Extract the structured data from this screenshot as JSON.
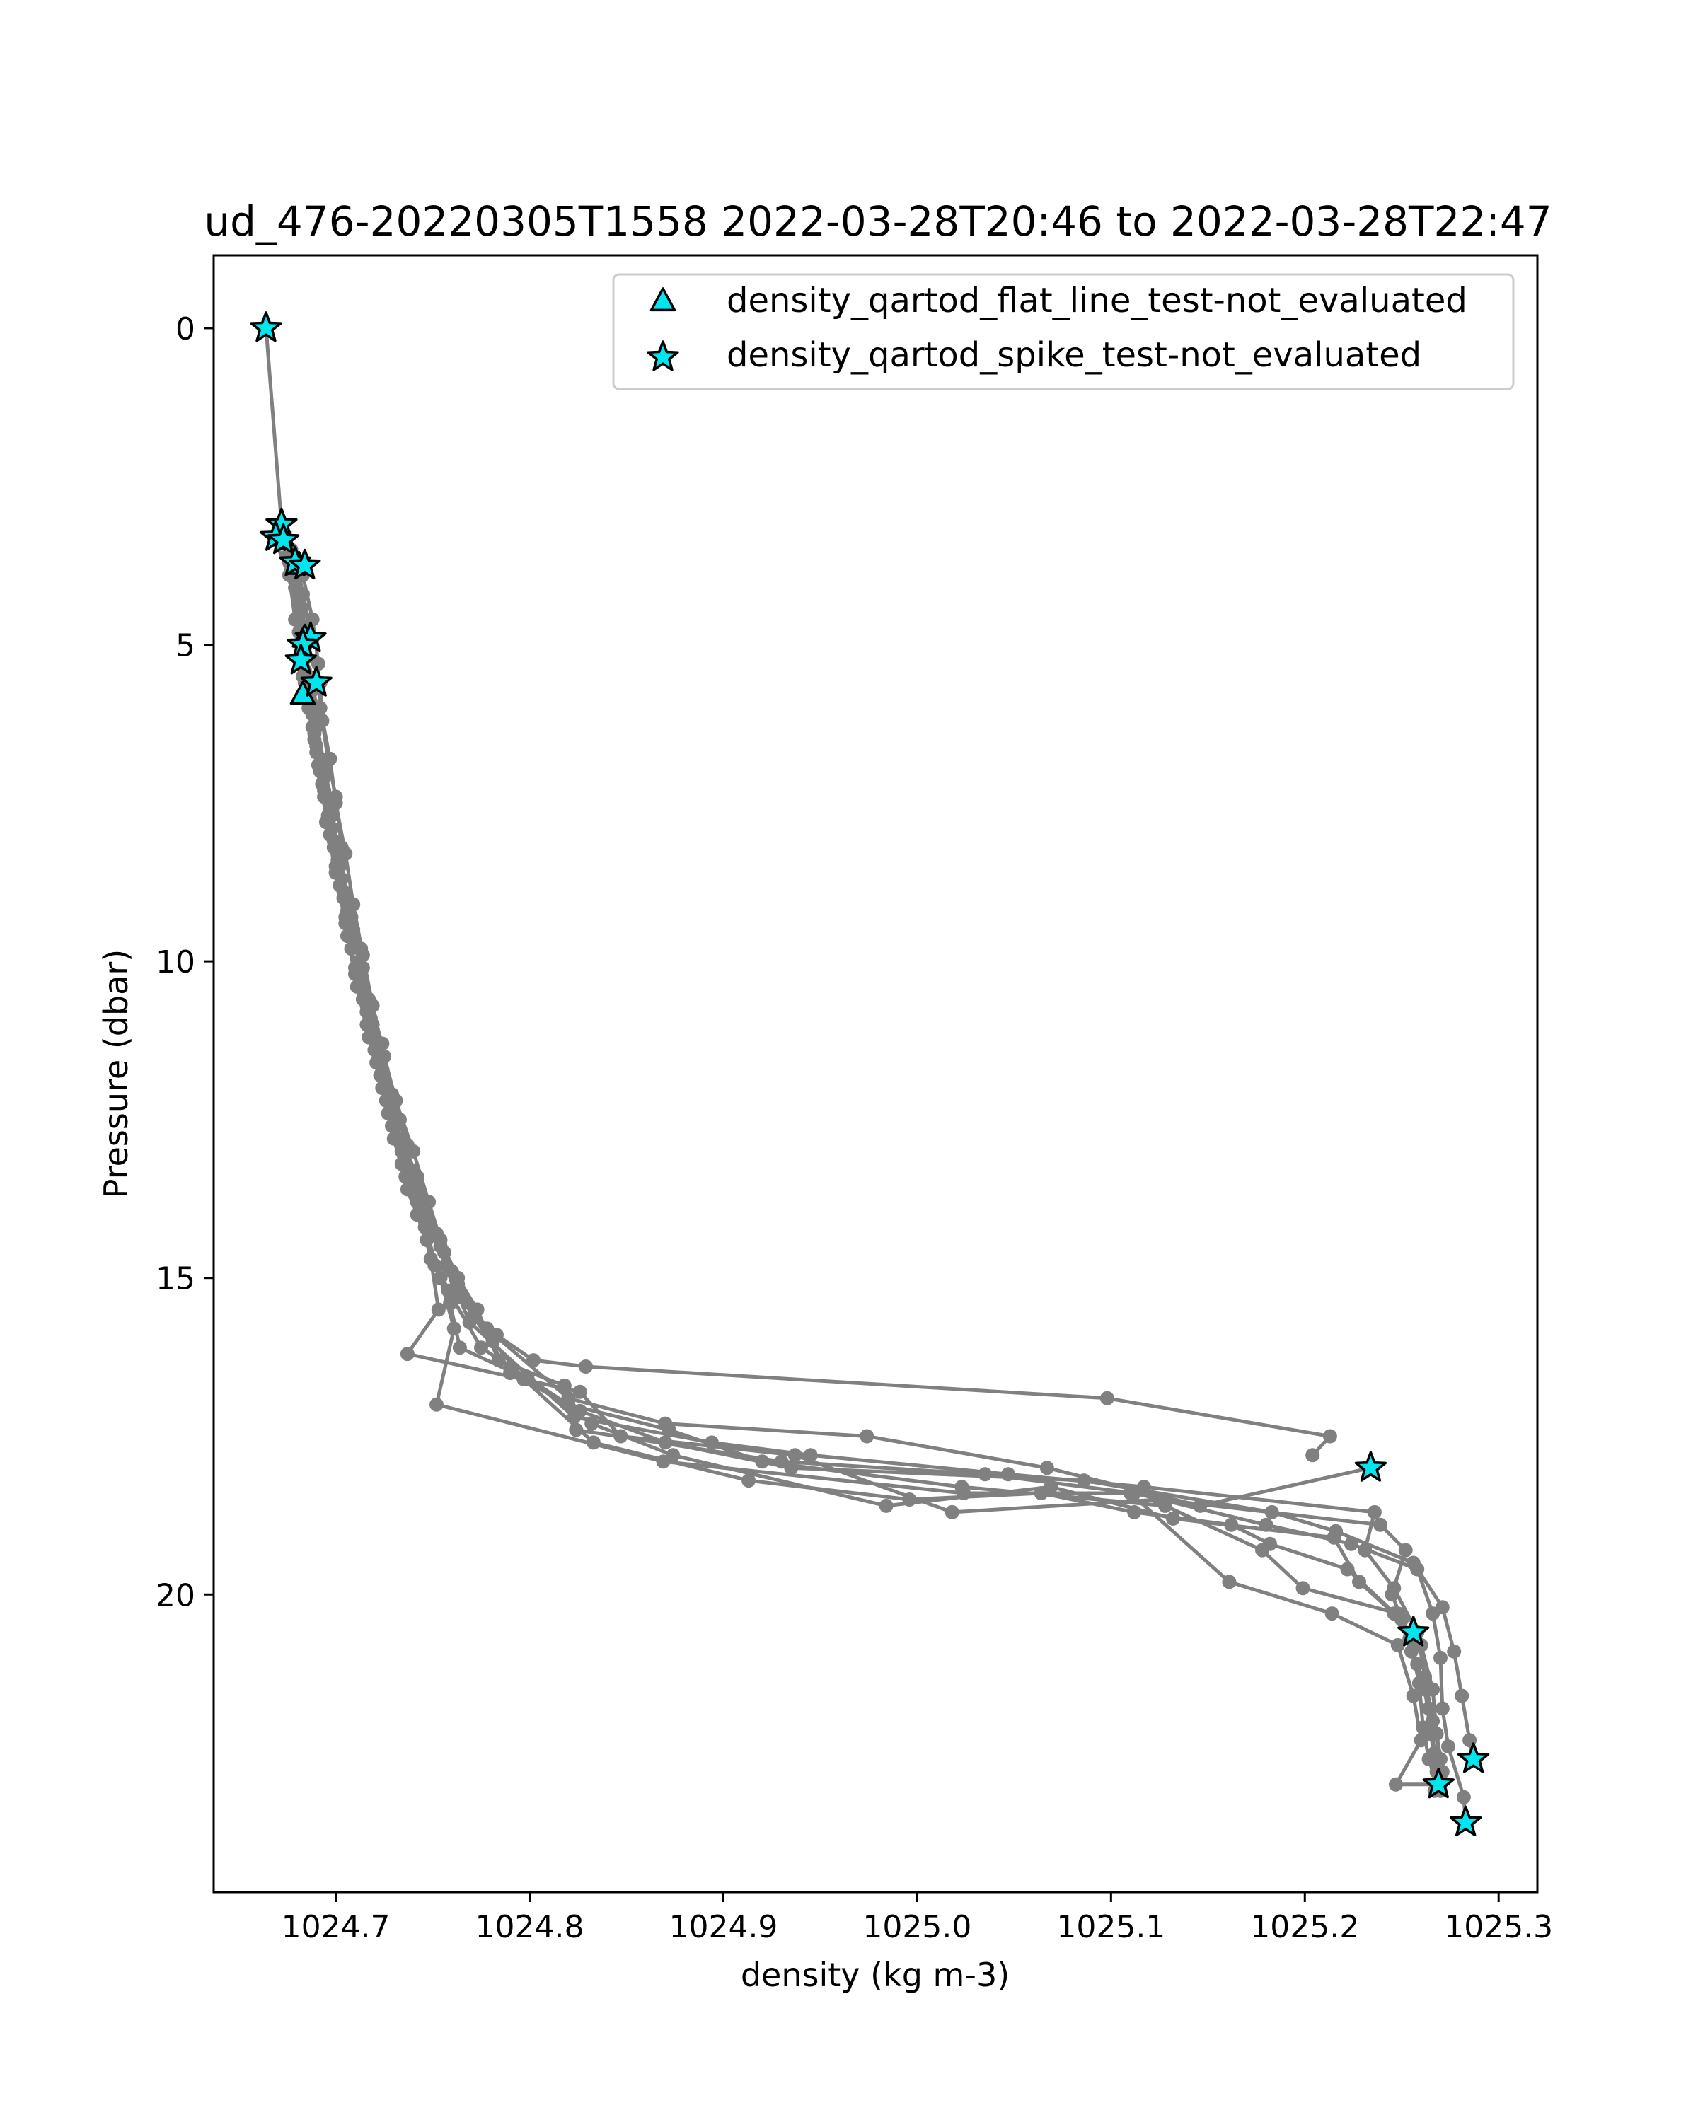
{
  "chart_data": {
    "type": "scatter",
    "title": "ud_476-20220305T1558 2022-03-28T20:46 to 2022-03-28T22:47",
    "xlabel": "density (kg m-3)",
    "ylabel": "Pressure (dbar)",
    "xlim": [
      1024.637,
      1025.32
    ],
    "ylim": [
      24.7,
      -1.15
    ],
    "y_inverted": true,
    "x_ticks": [
      "1024.7",
      "1024.8",
      "1024.9",
      "1025.0",
      "1025.1",
      "1025.2",
      "1025.3"
    ],
    "x_tick_values": [
      1024.7,
      1024.8,
      1024.9,
      1025.0,
      1025.1,
      1025.2,
      1025.3
    ],
    "y_ticks": [
      "0",
      "5",
      "10",
      "15",
      "20"
    ],
    "y_tick_values": [
      0,
      5,
      10,
      15,
      20
    ],
    "grid": false,
    "legend_position": "top-right",
    "colors": {
      "profile_line": "#808080",
      "marker_fill": "#00e5ee",
      "marker_edge": "#000000"
    },
    "profiles": [
      [
        [
          1024.664,
          0.0
        ],
        [
          1024.672,
          3.1
        ],
        [
          1024.68,
          3.7
        ],
        [
          1024.683,
          4.2
        ],
        [
          1024.688,
          4.9
        ],
        [
          1024.684,
          5.4
        ],
        [
          1024.692,
          5.6
        ],
        [
          1024.693,
          6.2
        ],
        [
          1024.696,
          6.8
        ],
        [
          1024.7,
          7.4
        ],
        [
          1024.703,
          8.2
        ],
        [
          1024.705,
          9.0
        ],
        [
          1024.713,
          9.8
        ],
        [
          1024.717,
          10.6
        ],
        [
          1024.724,
          11.3
        ],
        [
          1024.729,
          12.1
        ],
        [
          1024.737,
          12.9
        ],
        [
          1024.741,
          13.7
        ],
        [
          1024.754,
          14.5
        ],
        [
          1024.762,
          15.3
        ],
        [
          1024.783,
          15.9
        ],
        [
          1024.802,
          16.3
        ],
        [
          1024.829,
          16.4
        ],
        [
          1025.098,
          16.9
        ],
        [
          1025.213,
          17.5
        ],
        [
          1025.204,
          17.8
        ]
      ],
      [
        [
          1024.668,
          3.3
        ],
        [
          1024.676,
          3.9
        ],
        [
          1024.679,
          4.6
        ],
        [
          1024.683,
          5.2
        ],
        [
          1024.686,
          5.8
        ],
        [
          1024.689,
          6.5
        ],
        [
          1024.694,
          7.1
        ],
        [
          1024.698,
          7.9
        ],
        [
          1024.703,
          8.7
        ],
        [
          1024.709,
          9.5
        ],
        [
          1024.713,
          10.2
        ],
        [
          1024.719,
          11.0
        ],
        [
          1024.723,
          11.8
        ],
        [
          1024.731,
          12.6
        ],
        [
          1024.742,
          13.4
        ],
        [
          1024.752,
          14.3
        ],
        [
          1024.763,
          15.1
        ],
        [
          1024.778,
          15.8
        ],
        [
          1024.82,
          16.9
        ],
        [
          1024.87,
          17.3
        ],
        [
          1024.974,
          17.5
        ],
        [
          1025.067,
          18.0
        ],
        [
          1025.146,
          18.6
        ],
        [
          1025.234,
          18.0
        ]
      ],
      [
        [
          1024.673,
          3.4
        ],
        [
          1024.679,
          4.1
        ],
        [
          1024.681,
          4.8
        ],
        [
          1024.683,
          5.5
        ],
        [
          1024.688,
          6.1
        ],
        [
          1024.691,
          6.9
        ],
        [
          1024.697,
          7.6
        ],
        [
          1024.701,
          8.4
        ],
        [
          1024.706,
          9.2
        ],
        [
          1024.712,
          10.0
        ],
        [
          1024.716,
          10.8
        ],
        [
          1024.722,
          11.6
        ],
        [
          1024.728,
          12.4
        ],
        [
          1024.735,
          13.2
        ],
        [
          1024.745,
          14.0
        ],
        [
          1024.757,
          14.8
        ],
        [
          1024.769,
          15.7
        ],
        [
          1024.823,
          17.2
        ],
        [
          1024.894,
          17.6
        ],
        [
          1024.945,
          17.8
        ],
        [
          1025.047,
          18.1
        ],
        [
          1025.117,
          18.3
        ],
        [
          1025.236,
          18.7
        ],
        [
          1025.231,
          19.3
        ],
        [
          1025.246,
          19.9
        ],
        [
          1025.258,
          20.6
        ],
        [
          1025.262,
          21.3
        ],
        [
          1025.266,
          22.0
        ],
        [
          1025.27,
          22.6
        ],
        [
          1025.268,
          23.0
        ]
      ],
      [
        [
          1024.678,
          3.8
        ],
        [
          1024.682,
          4.5
        ],
        [
          1024.685,
          5.2
        ],
        [
          1024.687,
          5.9
        ],
        [
          1024.69,
          6.6
        ],
        [
          1024.694,
          7.3
        ],
        [
          1024.699,
          8.1
        ],
        [
          1024.704,
          8.9
        ],
        [
          1024.71,
          9.7
        ],
        [
          1024.715,
          10.5
        ],
        [
          1024.72,
          11.2
        ],
        [
          1024.726,
          12.0
        ],
        [
          1024.733,
          12.8
        ],
        [
          1024.743,
          13.6
        ],
        [
          1024.754,
          14.4
        ],
        [
          1024.763,
          15.0
        ],
        [
          1024.773,
          15.5
        ],
        [
          1024.784,
          16.3
        ],
        [
          1024.818,
          16.7
        ],
        [
          1024.824,
          17.4
        ],
        [
          1024.93,
          17.9
        ],
        [
          1025.035,
          18.1
        ],
        [
          1025.112,
          18.4
        ],
        [
          1025.18,
          18.9
        ],
        [
          1025.224,
          19.2
        ],
        [
          1025.258,
          19.6
        ],
        [
          1025.266,
          20.3
        ],
        [
          1025.27,
          21.0
        ],
        [
          1025.271,
          21.8
        ],
        [
          1025.274,
          22.4
        ],
        [
          1025.282,
          23.2
        ],
        [
          1025.283,
          23.6
        ]
      ],
      [
        [
          1024.671,
          3.2
        ],
        [
          1024.677,
          3.8
        ],
        [
          1024.682,
          4.4
        ],
        [
          1024.682,
          5.0
        ],
        [
          1024.689,
          5.7
        ],
        [
          1024.69,
          6.3
        ],
        [
          1024.695,
          7.0
        ],
        [
          1024.698,
          7.7
        ],
        [
          1024.702,
          8.5
        ],
        [
          1024.708,
          9.3
        ],
        [
          1024.714,
          10.1
        ],
        [
          1024.718,
          10.9
        ],
        [
          1024.724,
          11.7
        ],
        [
          1024.733,
          12.5
        ],
        [
          1024.739,
          13.3
        ],
        [
          1024.747,
          14.1
        ],
        [
          1024.76,
          14.9
        ],
        [
          1024.771,
          15.6
        ],
        [
          1024.79,
          16.5
        ],
        [
          1024.826,
          17.1
        ],
        [
          1024.87,
          17.6
        ],
        [
          1024.935,
          18.0
        ],
        [
          1025.086,
          18.2
        ],
        [
          1025.183,
          18.7
        ],
        [
          1025.216,
          19.0
        ],
        [
          1025.256,
          19.5
        ],
        [
          1025.271,
          20.2
        ],
        [
          1025.277,
          20.9
        ],
        [
          1025.281,
          21.6
        ],
        [
          1025.285,
          22.3
        ],
        [
          1025.287,
          22.6
        ]
      ],
      [
        [
          1024.676,
          3.7
        ],
        [
          1024.681,
          4.3
        ],
        [
          1024.684,
          5.0
        ],
        [
          1024.686,
          5.7
        ],
        [
          1024.689,
          6.4
        ],
        [
          1024.693,
          7.2
        ],
        [
          1024.697,
          8.0
        ],
        [
          1024.702,
          8.8
        ],
        [
          1024.706,
          9.6
        ],
        [
          1024.711,
          10.4
        ],
        [
          1024.717,
          11.2
        ],
        [
          1024.724,
          12.0
        ],
        [
          1024.73,
          12.8
        ],
        [
          1024.737,
          13.6
        ],
        [
          1024.747,
          14.4
        ],
        [
          1024.758,
          15.2
        ],
        [
          1024.775,
          16.1
        ],
        [
          1024.82,
          17.0
        ],
        [
          1024.872,
          17.4
        ],
        [
          1024.92,
          17.9
        ],
        [
          1025.023,
          18.3
        ],
        [
          1025.128,
          18.6
        ],
        [
          1025.178,
          19.3
        ],
        [
          1025.199,
          19.9
        ],
        [
          1025.248,
          20.3
        ],
        [
          1025.255,
          20.9
        ],
        [
          1025.262,
          21.5
        ],
        [
          1025.265,
          22.2
        ],
        [
          1025.268,
          22.8
        ],
        [
          1025.27,
          23.1
        ]
      ],
      [
        [
          1024.675,
          3.6
        ],
        [
          1024.68,
          4.2
        ],
        [
          1024.684,
          4.8
        ],
        [
          1024.686,
          5.5
        ],
        [
          1024.69,
          6.2
        ],
        [
          1024.693,
          6.9
        ],
        [
          1024.696,
          7.7
        ],
        [
          1024.7,
          8.5
        ],
        [
          1024.705,
          9.3
        ],
        [
          1024.71,
          10.1
        ],
        [
          1024.716,
          10.8
        ],
        [
          1024.721,
          11.6
        ],
        [
          1024.727,
          12.4
        ],
        [
          1024.734,
          13.2
        ],
        [
          1024.742,
          14.0
        ],
        [
          1024.751,
          14.8
        ],
        [
          1024.759,
          15.4
        ],
        [
          1024.764,
          16.1
        ],
        [
          1024.799,
          16.6
        ],
        [
          1024.832,
          17.3
        ],
        [
          1024.874,
          17.8
        ],
        [
          1024.984,
          18.6
        ],
        [
          1025.069,
          18.3
        ],
        [
          1025.132,
          18.8
        ],
        [
          1025.215,
          19.1
        ],
        [
          1025.228,
          19.8
        ],
        [
          1025.246,
          20.3
        ],
        [
          1025.26,
          20.8
        ],
        [
          1025.266,
          21.5
        ],
        [
          1025.268,
          22.2
        ],
        [
          1025.271,
          22.8
        ]
      ],
      [
        [
          1024.683,
          3.9
        ],
        [
          1024.688,
          4.6
        ],
        [
          1024.691,
          5.3
        ],
        [
          1024.692,
          6.0
        ],
        [
          1024.697,
          6.8
        ],
        [
          1024.7,
          7.5
        ],
        [
          1024.705,
          8.3
        ],
        [
          1024.709,
          9.1
        ],
        [
          1024.714,
          9.9
        ],
        [
          1024.719,
          10.7
        ],
        [
          1024.725,
          11.5
        ],
        [
          1024.731,
          12.2
        ],
        [
          1024.74,
          13.0
        ],
        [
          1024.748,
          13.8
        ],
        [
          1024.756,
          14.6
        ],
        [
          1024.764,
          15.3
        ],
        [
          1024.781,
          16.0
        ],
        [
          1024.797,
          16.6
        ],
        [
          1024.833,
          17.6
        ],
        [
          1024.913,
          18.2
        ],
        [
          1024.996,
          18.5
        ],
        [
          1025.064,
          18.4
        ],
        [
          1025.112,
          18.7
        ],
        [
          1025.162,
          18.9
        ],
        [
          1025.182,
          19.2
        ],
        [
          1025.222,
          19.6
        ],
        [
          1025.25,
          20.4
        ],
        [
          1025.258,
          21.1
        ],
        [
          1025.264,
          21.8
        ],
        [
          1025.267,
          22.5
        ],
        [
          1025.267,
          23.1
        ]
      ],
      [
        [
          1024.674,
          3.3
        ],
        [
          1024.679,
          4.0
        ],
        [
          1024.683,
          4.7
        ],
        [
          1024.682,
          5.3
        ],
        [
          1024.686,
          6.0
        ],
        [
          1024.69,
          6.7
        ],
        [
          1024.694,
          7.4
        ],
        [
          1024.699,
          8.2
        ],
        [
          1024.704,
          9.0
        ],
        [
          1024.708,
          9.8
        ],
        [
          1024.714,
          10.6
        ],
        [
          1024.72,
          11.4
        ],
        [
          1024.726,
          12.2
        ],
        [
          1024.734,
          13.0
        ],
        [
          1024.742,
          13.8
        ],
        [
          1024.749,
          14.7
        ],
        [
          1024.753,
          15.5
        ],
        [
          1024.737,
          16.2
        ],
        [
          1024.826,
          16.8
        ],
        [
          1024.847,
          17.5
        ],
        [
          1024.937,
          17.8
        ],
        [
          1025.018,
          18.7
        ],
        [
          1025.125,
          18.5
        ],
        [
          1025.239,
          18.9
        ],
        [
          1025.252,
          19.3
        ],
        [
          1025.245,
          20.0
        ],
        [
          1025.254,
          20.7
        ],
        [
          1025.259,
          21.4
        ],
        [
          1025.261,
          22.1
        ],
        [
          1025.264,
          22.6
        ],
        [
          1025.268,
          23.0
        ]
      ],
      [
        [
          1024.677,
          3.5
        ],
        [
          1024.681,
          4.2
        ],
        [
          1024.685,
          4.9
        ],
        [
          1024.684,
          5.6
        ],
        [
          1024.688,
          6.3
        ],
        [
          1024.692,
          7.0
        ],
        [
          1024.695,
          7.8
        ],
        [
          1024.7,
          8.6
        ],
        [
          1024.705,
          9.4
        ],
        [
          1024.71,
          10.2
        ],
        [
          1024.716,
          11.0
        ],
        [
          1024.723,
          11.8
        ],
        [
          1024.729,
          12.6
        ],
        [
          1024.736,
          13.4
        ],
        [
          1024.746,
          14.2
        ],
        [
          1024.754,
          15.0
        ],
        [
          1024.761,
          15.8
        ],
        [
          1024.752,
          17.0
        ],
        [
          1024.869,
          17.9
        ],
        [
          1025.024,
          18.4
        ],
        [
          1025.11,
          18.4
        ],
        [
          1025.161,
          19.8
        ],
        [
          1025.214,
          20.3
        ],
        [
          1025.248,
          20.8
        ],
        [
          1025.256,
          21.6
        ],
        [
          1025.26,
          22.3
        ],
        [
          1025.247,
          23.0
        ],
        [
          1025.269,
          23.0
        ]
      ]
    ],
    "series": [
      {
        "name": "density_qartod_flat_line_test-not_evaluated",
        "marker": "triangle-up",
        "points": [
          [
            1024.672,
            3.3
          ],
          [
            1024.681,
            3.75
          ],
          [
            1024.684,
            4.9
          ],
          [
            1024.683,
            5.8
          ]
        ]
      },
      {
        "name": "density_qartod_spike_test-not_evaluated",
        "marker": "star",
        "points": [
          [
            1024.664,
            0.0
          ],
          [
            1024.672,
            3.1
          ],
          [
            1024.669,
            3.3
          ],
          [
            1024.673,
            3.35
          ],
          [
            1024.679,
            3.7
          ],
          [
            1024.684,
            3.75
          ],
          [
            1024.687,
            4.9
          ],
          [
            1024.683,
            5.0
          ],
          [
            1024.682,
            5.25
          ],
          [
            1024.69,
            5.6
          ],
          [
            1025.234,
            18.0
          ],
          [
            1025.256,
            20.6
          ],
          [
            1025.287,
            22.6
          ],
          [
            1025.269,
            23.0
          ],
          [
            1025.283,
            23.6
          ]
        ]
      }
    ]
  }
}
